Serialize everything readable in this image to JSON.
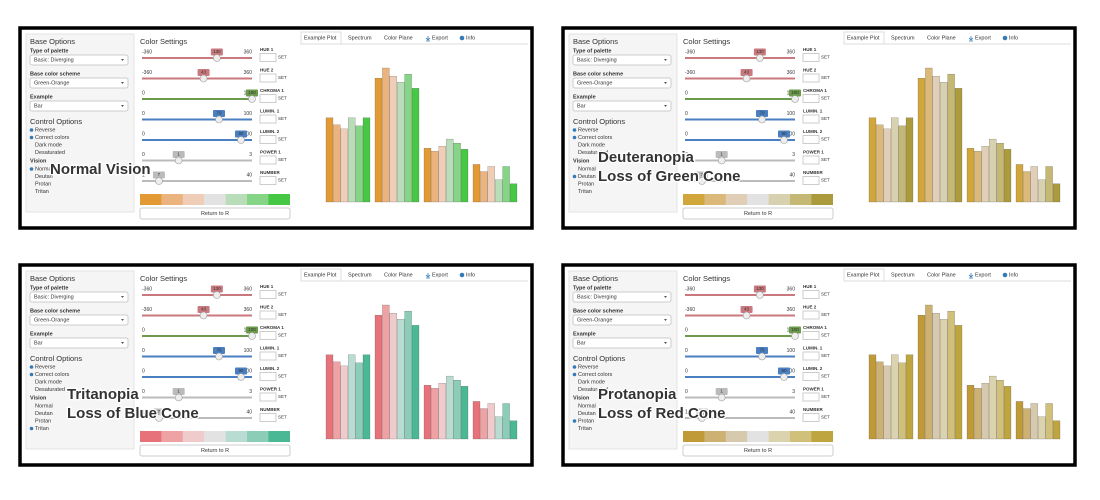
{
  "panels": [
    {
      "title_lines": [
        "Normal Vision"
      ],
      "vision": 0,
      "palette": [
        "#e39a35",
        "#ebb47f",
        "#efcdb7",
        "#e2e2e2",
        "#b8ddb8",
        "#86d486",
        "#46c845"
      ]
    },
    {
      "title_lines": [
        "Deuteranopia",
        "Loss of Green Cone"
      ],
      "vision": 1,
      "palette": [
        "#d1a63a",
        "#dab97a",
        "#e0cfb6",
        "#e2e2e2",
        "#d8d1b0",
        "#c4b874",
        "#ab9b3c"
      ]
    },
    {
      "title_lines": [
        "Tritanopia",
        "Loss of Blue Cone"
      ],
      "vision": 3,
      "palette": [
        "#e8727a",
        "#efa2a4",
        "#efcbcc",
        "#e2e2e2",
        "#b9dcd2",
        "#8bcdb7",
        "#4bb895"
      ]
    },
    {
      "title_lines": [
        "Protanopia",
        "Loss of Red Cone"
      ],
      "vision": 2,
      "palette": [
        "#c19a38",
        "#cdb172",
        "#d7c9ae",
        "#e2e2e2",
        "#dbd3ae",
        "#d0c07a",
        "#bfa53f"
      ]
    }
  ],
  "ui": {
    "base_options": "Base Options",
    "type_of_palette": "Type of palette",
    "palette_value": "Basic: Diverging",
    "base_color_scheme": "Base color scheme",
    "scheme_value": "Green-Orange",
    "example": "Example",
    "example_value": "Bar",
    "control_options": "Control Options",
    "checkboxes": [
      "Reverse",
      "Correct colors",
      "Dark mode",
      "Desaturated"
    ],
    "checked": [
      true,
      true,
      false,
      false
    ],
    "vision": "Vision",
    "vision_options": [
      "Normal",
      "Deutan",
      "Protan",
      "Tritan"
    ],
    "color_settings": "Color Settings",
    "sliders": [
      {
        "label": "HUE 1",
        "min": -360,
        "max": 360,
        "value": 130,
        "color": "#c9787d"
      },
      {
        "label": "HUE 2",
        "min": -360,
        "max": 360,
        "value": 43,
        "color": "#c9787d"
      },
      {
        "label": "CHROMA 1",
        "min": 0,
        "max": 100,
        "value": 100,
        "color": "#6a9a4a"
      },
      {
        "label": "LUMIN. 1",
        "min": 0,
        "max": 100,
        "value": 70,
        "color": "#4a7fc1"
      },
      {
        "label": "LUMIN. 2",
        "min": 0,
        "max": 100,
        "value": 90,
        "color": "#4a7fc1"
      },
      {
        "label": "POWER 1",
        "min": 0,
        "max": 3,
        "value": 1,
        "color": "#bbbbbb"
      },
      {
        "label": "NUMBER",
        "min": 1,
        "max": 40,
        "value": 7,
        "color": "#bbbbbb"
      }
    ],
    "set": "SET",
    "return": "Return to R",
    "tabs": [
      "Example Plot",
      "Spectrum",
      "Color Plane",
      "Export",
      "Info"
    ]
  },
  "example_plot": {
    "values": [
      [
        83,
        76,
        72,
        83,
        75,
        83
      ],
      [
        122,
        132,
        124,
        118,
        126,
        112
      ],
      [
        53,
        50,
        55,
        62,
        58,
        52
      ],
      [
        37,
        30,
        35,
        22,
        35,
        18
      ]
    ]
  }
}
